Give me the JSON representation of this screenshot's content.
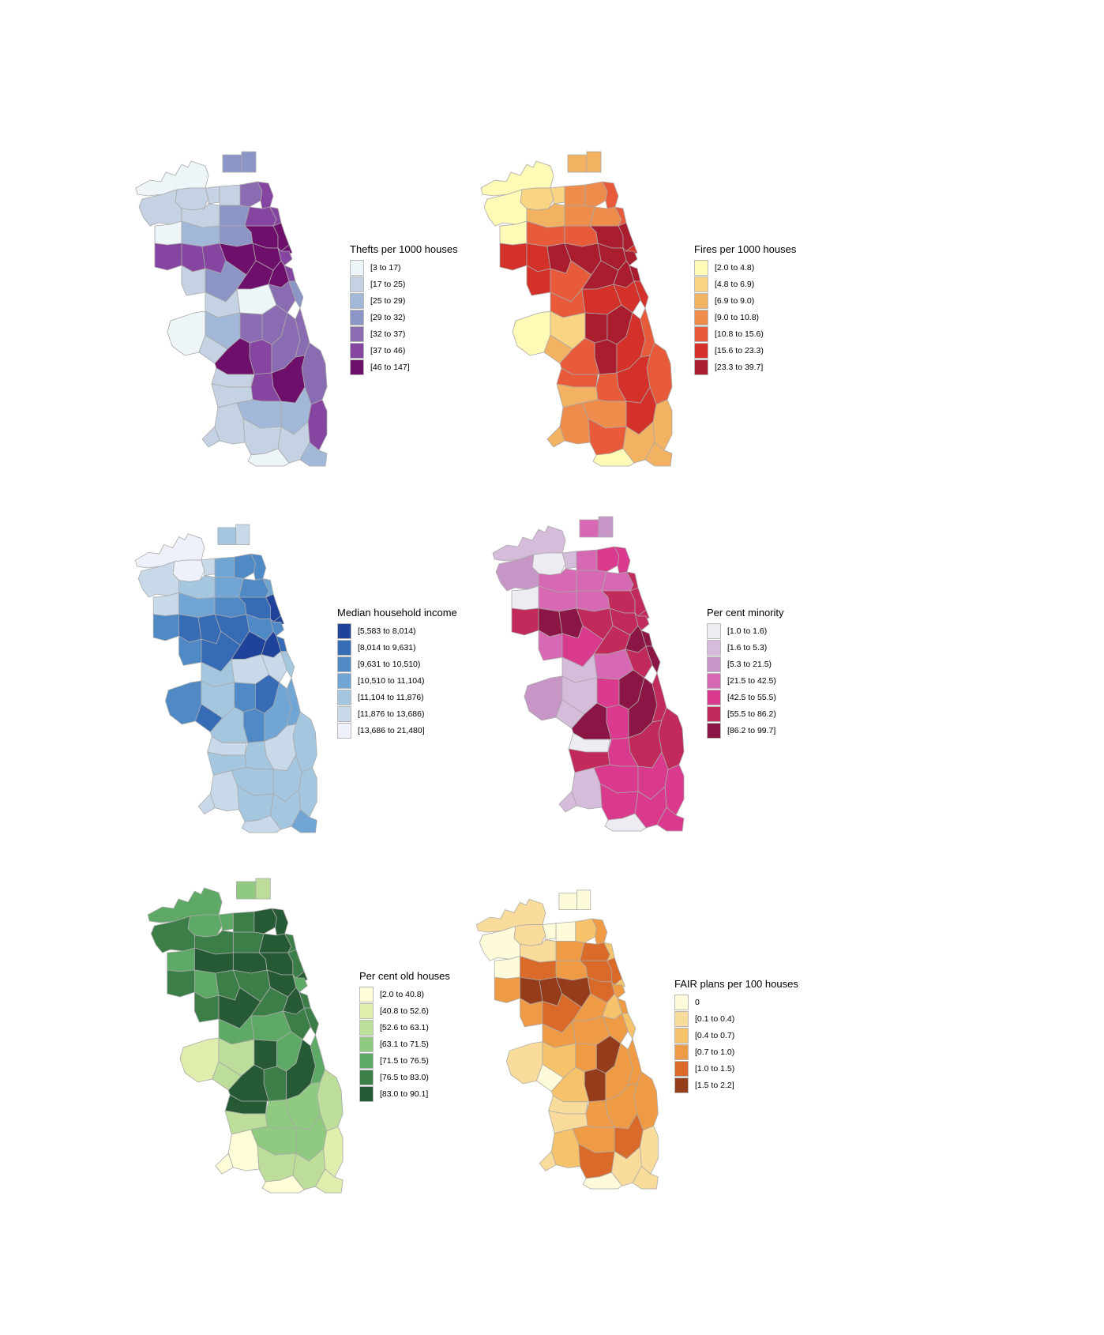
{
  "maps": [
    {
      "legend_title": "Thefts per 1000 houses",
      "classes": [
        {
          "label": "[3 to 17)",
          "color": "#edf5f8"
        },
        {
          "label": "[17 to 25)",
          "color": "#c4d2e4"
        },
        {
          "label": "[25 to 29)",
          "color": "#a2b8d8"
        },
        {
          "label": "[29 to 32)",
          "color": "#8c96c6"
        },
        {
          "label": "[32 to 37)",
          "color": "#8a6cb2"
        },
        {
          "label": "[37 to 46)",
          "color": "#8645a0"
        },
        {
          "label": "[46 to 147]",
          "color": "#6e0f6c"
        }
      ]
    },
    {
      "legend_title": "Fires per 1000 houses",
      "classes": [
        {
          "label": "[2.0 to 4.8)",
          "color": "#fffbb6"
        },
        {
          "label": "[4.8 to 6.9)",
          "color": "#f9d583"
        },
        {
          "label": "[6.9 to 9.0)",
          "color": "#f3b261"
        },
        {
          "label": "[9.0 to 10.8)",
          "color": "#ee8c4c"
        },
        {
          "label": "[10.8 to 15.6)",
          "color": "#e75a3a"
        },
        {
          "label": "[15.6 to 23.3)",
          "color": "#d33129"
        },
        {
          "label": "[23.3 to 39.7]",
          "color": "#a91d2f"
        }
      ]
    },
    {
      "legend_title": "Median household income",
      "classes": [
        {
          "label": "[5,583 to 8,014)",
          "color": "#1f439a"
        },
        {
          "label": "[8,014 to 9,631)",
          "color": "#366bb5"
        },
        {
          "label": "[9,631 to 10,510)",
          "color": "#4f8ac6"
        },
        {
          "label": "[10,510 to 11,104)",
          "color": "#71a6d4"
        },
        {
          "label": "[11,104 to 11,876)",
          "color": "#a4c7df"
        },
        {
          "label": "[11,876 to 13,686)",
          "color": "#c8d9ea"
        },
        {
          "label": "[13,686 to 21,480]",
          "color": "#eef1fa"
        }
      ]
    },
    {
      "legend_title": "Per cent minority",
      "classes": [
        {
          "label": "[1.0 to 1.6)",
          "color": "#eeebf3"
        },
        {
          "label": "[1.6 to 5.3)",
          "color": "#d6bcdb"
        },
        {
          "label": "[5.3 to 21.5)",
          "color": "#c796c6"
        },
        {
          "label": "[21.5 to 42.5)",
          "color": "#d668b4"
        },
        {
          "label": "[42.5 to 55.5)",
          "color": "#da3a8e"
        },
        {
          "label": "[55.5 to 86.2)",
          "color": "#c12a5a"
        },
        {
          "label": "[86.2 to 99.7]",
          "color": "#8b1544"
        }
      ]
    },
    {
      "legend_title": "Per cent old houses",
      "classes": [
        {
          "label": "[2.0 to 40.8)",
          "color": "#fefdd8"
        },
        {
          "label": "[40.8 to 52.6)",
          "color": "#dfedad"
        },
        {
          "label": "[52.6 to 63.1)",
          "color": "#bddd9a"
        },
        {
          "label": "[63.1 to 71.5)",
          "color": "#8fca80"
        },
        {
          "label": "[71.5 to 76.5)",
          "color": "#5ea965"
        },
        {
          "label": "[76.5 to 83.0)",
          "color": "#3c7e48"
        },
        {
          "label": "[83.0 to 90.1]",
          "color": "#255a35"
        }
      ]
    },
    {
      "legend_title": "FAIR plans per 100 houses",
      "classes": [
        {
          "label": "0",
          "color": "#fefbdb"
        },
        {
          "label": "[0.1 to 0.4)",
          "color": "#f9dc9c"
        },
        {
          "label": "[0.4 to 0.7)",
          "color": "#f6c36a"
        },
        {
          "label": "[0.7 to 1.0)",
          "color": "#ef9a44"
        },
        {
          "label": "[1.0 to 1.5)",
          "color": "#d96a29"
        },
        {
          "label": "[1.5 to 2.2]",
          "color": "#953c1b"
        }
      ]
    }
  ]
}
